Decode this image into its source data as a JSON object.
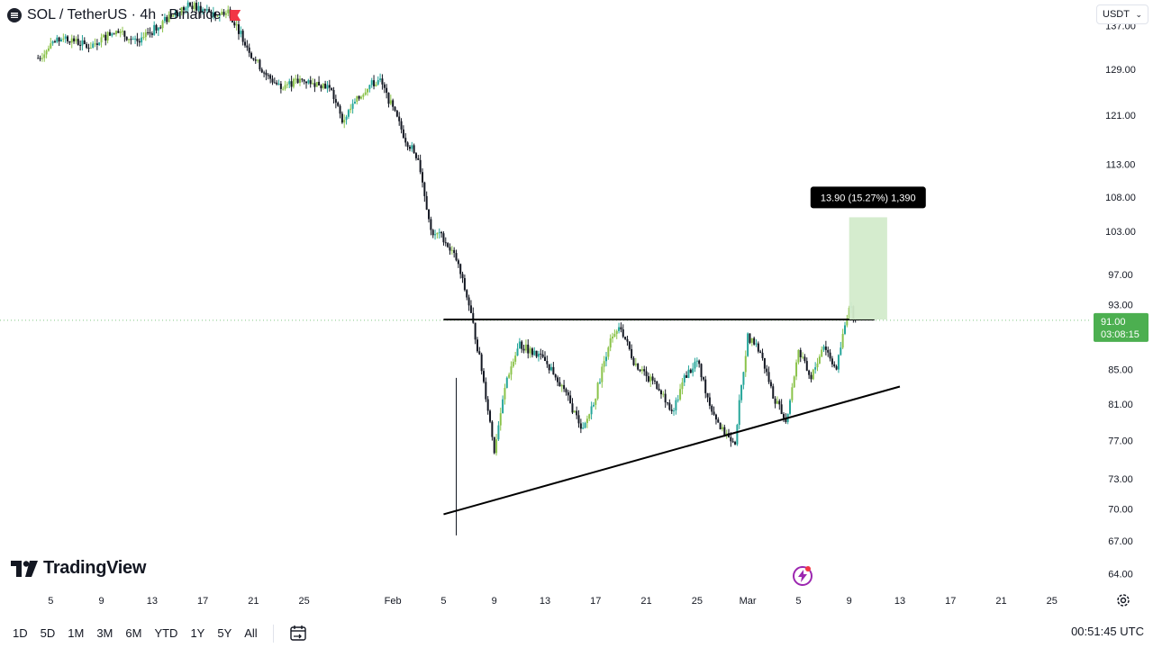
{
  "header": {
    "title": "SOL / TetherUS · 4h · Binance"
  },
  "currency_button": {
    "label": "USDT"
  },
  "logo": {
    "text": "TradingView"
  },
  "measure_label": "13.90 (15.27%) 1,390",
  "price_badge": {
    "price": "91.00",
    "countdown": "03:08:15"
  },
  "toolbar": {
    "timeframes": [
      "1D",
      "5D",
      "1M",
      "3M",
      "6M",
      "YTD",
      "1Y",
      "5Y",
      "All"
    ]
  },
  "clock": "00:51:45 UTC",
  "colors": {
    "up": "#26a69a",
    "up_light": "#8bc34a",
    "down": "#131722",
    "measure_fill": "#d3ebcb",
    "badge": "#4caf50"
  },
  "chart_data": {
    "type": "candlestick",
    "title": "SOL / TetherUS · 4h · Binance",
    "y_ticks": [
      137,
      129,
      121,
      113,
      108,
      103,
      97,
      93,
      85,
      81,
      77,
      73,
      70,
      67,
      64
    ],
    "y_tick_labels": [
      "137.00",
      "129.00",
      "121.00",
      "113.00",
      "108.00",
      "103.00",
      "97.00",
      "93.00",
      "85.00",
      "81.00",
      "77.00",
      "73.00",
      "70.00",
      "67.00",
      "64.00"
    ],
    "x_ticks": [
      {
        "label": "5",
        "date": "2025-01-05"
      },
      {
        "label": "9",
        "date": "2025-01-09"
      },
      {
        "label": "13",
        "date": "2025-01-13"
      },
      {
        "label": "17",
        "date": "2025-01-17"
      },
      {
        "label": "21",
        "date": "2025-01-21"
      },
      {
        "label": "25",
        "date": "2025-01-25"
      },
      {
        "label": "Feb",
        "date": "2025-02-01"
      },
      {
        "label": "5",
        "date": "2025-02-05"
      },
      {
        "label": "9",
        "date": "2025-02-09"
      },
      {
        "label": "13",
        "date": "2025-02-13"
      },
      {
        "label": "17",
        "date": "2025-02-17"
      },
      {
        "label": "21",
        "date": "2025-02-21"
      },
      {
        "label": "25",
        "date": "2025-02-25"
      },
      {
        "label": "Mar",
        "date": "2025-03-01"
      },
      {
        "label": "5",
        "date": "2025-03-05"
      },
      {
        "label": "9",
        "date": "2025-03-09"
      },
      {
        "label": "13",
        "date": "2025-03-13"
      },
      {
        "label": "17",
        "date": "2025-03-17"
      },
      {
        "label": "21",
        "date": "2025-03-21"
      },
      {
        "label": "25",
        "date": "2025-03-25"
      }
    ],
    "price_path": [
      {
        "date": "2025-01-04",
        "price": 131
      },
      {
        "date": "2025-01-06",
        "price": 135
      },
      {
        "date": "2025-01-08",
        "price": 133
      },
      {
        "date": "2025-01-10",
        "price": 136
      },
      {
        "date": "2025-01-12",
        "price": 134
      },
      {
        "date": "2025-01-14",
        "price": 138
      },
      {
        "date": "2025-01-16",
        "price": 141
      },
      {
        "date": "2025-01-18",
        "price": 139
      },
      {
        "date": "2025-01-19",
        "price": 140
      },
      {
        "date": "2025-01-21",
        "price": 131
      },
      {
        "date": "2025-01-22",
        "price": 128
      },
      {
        "date": "2025-01-23",
        "price": 126
      },
      {
        "date": "2025-01-25",
        "price": 127
      },
      {
        "date": "2025-01-27",
        "price": 126
      },
      {
        "date": "2025-01-28",
        "price": 120
      },
      {
        "date": "2025-01-30",
        "price": 126
      },
      {
        "date": "2025-01-31",
        "price": 127
      },
      {
        "date": "2025-02-02",
        "price": 117
      },
      {
        "date": "2025-02-03",
        "price": 114
      },
      {
        "date": "2025-02-04",
        "price": 103
      },
      {
        "date": "2025-02-05",
        "price": 102
      },
      {
        "date": "2025-02-06",
        "price": 99
      },
      {
        "date": "2025-02-07",
        "price": 93
      },
      {
        "date": "2025-02-08",
        "price": 85
      },
      {
        "date": "2025-02-09",
        "price": 76
      },
      {
        "date": "2025-02-10",
        "price": 84
      },
      {
        "date": "2025-02-11",
        "price": 88
      },
      {
        "date": "2025-02-12",
        "price": 87
      },
      {
        "date": "2025-02-13",
        "price": 86
      },
      {
        "date": "2025-02-14",
        "price": 84
      },
      {
        "date": "2025-02-15",
        "price": 81
      },
      {
        "date": "2025-02-16",
        "price": 78
      },
      {
        "date": "2025-02-17",
        "price": 82
      },
      {
        "date": "2025-02-18",
        "price": 88
      },
      {
        "date": "2025-02-19",
        "price": 90
      },
      {
        "date": "2025-02-20",
        "price": 86
      },
      {
        "date": "2025-02-21",
        "price": 84
      },
      {
        "date": "2025-02-22",
        "price": 83
      },
      {
        "date": "2025-02-23",
        "price": 80
      },
      {
        "date": "2025-02-24",
        "price": 84
      },
      {
        "date": "2025-02-25",
        "price": 86
      },
      {
        "date": "2025-02-26",
        "price": 81
      },
      {
        "date": "2025-02-27",
        "price": 78
      },
      {
        "date": "2025-02-28",
        "price": 77
      },
      {
        "date": "2025-03-01",
        "price": 89
      },
      {
        "date": "2025-03-02",
        "price": 87
      },
      {
        "date": "2025-03-03",
        "price": 82
      },
      {
        "date": "2025-03-04",
        "price": 79
      },
      {
        "date": "2025-03-05",
        "price": 87
      },
      {
        "date": "2025-03-06",
        "price": 84
      },
      {
        "date": "2025-03-07",
        "price": 88
      },
      {
        "date": "2025-03-08",
        "price": 85
      },
      {
        "date": "2025-03-09",
        "price": 93
      },
      {
        "date": "2025-03-09T12",
        "price": 91
      }
    ],
    "x_range": [
      "2025-01-01",
      "2025-03-28"
    ],
    "y_range": [
      63,
      142
    ],
    "log_scale": true,
    "last_price": 91.0,
    "lines": [
      {
        "type": "horizontal_resistance",
        "from": {
          "date": "2025-02-05",
          "price": 91.1
        },
        "to": {
          "date": "2025-03-11",
          "price": 91.1
        }
      },
      {
        "type": "ascending_support",
        "from": {
          "date": "2025-02-05",
          "price": 69.5
        },
        "to": {
          "date": "2025-03-13",
          "price": 83.0
        }
      }
    ],
    "measure": {
      "from_price": 91.1,
      "to_price": 105.0,
      "from_date": "2025-03-09",
      "to_date": "2025-03-12",
      "label": "13.90 (15.27%) 1,390"
    }
  }
}
